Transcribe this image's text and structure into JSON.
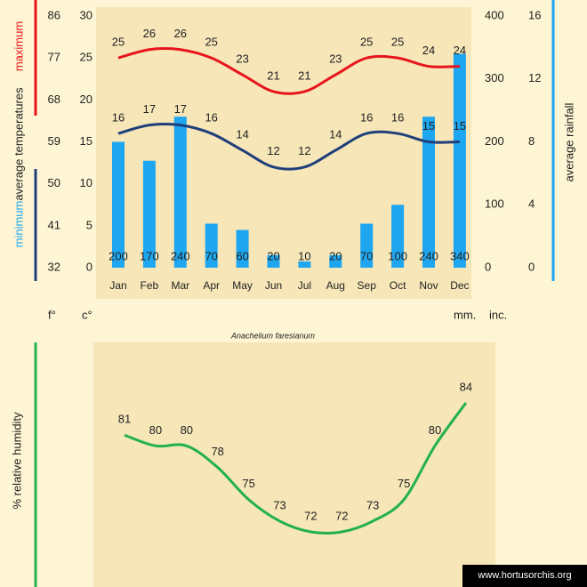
{
  "chart_data": [
    {
      "type": "combo",
      "title": "Anachelium faresianum",
      "categories": [
        "Jan",
        "Feb",
        "Mar",
        "Apr",
        "May",
        "Jun",
        "Jul",
        "Aug",
        "Sep",
        "Oct",
        "Nov",
        "Dec"
      ],
      "series": [
        {
          "name": "maximum",
          "type": "line",
          "color": "#e8141c",
          "values": [
            25,
            26,
            26,
            25,
            23,
            21,
            21,
            23,
            25,
            25,
            24,
            24
          ]
        },
        {
          "name": "minimum",
          "type": "line",
          "color": "#1f3f7a",
          "values": [
            16,
            17,
            17,
            16,
            14,
            12,
            12,
            14,
            16,
            16,
            15,
            15
          ]
        },
        {
          "name": "average rainfall",
          "type": "bar",
          "axis": "y2",
          "color": "#1ea7f0",
          "values": [
            200,
            170,
            240,
            70,
            60,
            20,
            10,
            20,
            70,
            100,
            240,
            340
          ]
        }
      ],
      "y_label": "average temperatures",
      "y_unit": "c°",
      "ylim": [
        0,
        30
      ],
      "yticks": [
        0,
        5,
        10,
        15,
        20,
        25,
        30
      ],
      "y3_unit": "f°",
      "y3lim": [
        32,
        86
      ],
      "y3ticks": [
        32,
        41,
        50,
        59,
        68,
        77,
        86
      ],
      "y2_unit": "mm.",
      "y2lim": [
        0,
        400
      ],
      "y2ticks": [
        0,
        100,
        200,
        300,
        400
      ],
      "y4_unit": "inc.",
      "y4lim": [
        0,
        16
      ],
      "y4ticks": [
        0,
        4,
        8,
        12,
        16
      ]
    },
    {
      "type": "line",
      "y_label": "% relative humidity",
      "color": "#22b14c",
      "values": [
        81,
        80,
        80,
        78,
        75,
        73,
        72,
        72,
        73,
        75,
        80,
        84
      ]
    }
  ],
  "footer": "www.hortusorchis.org"
}
